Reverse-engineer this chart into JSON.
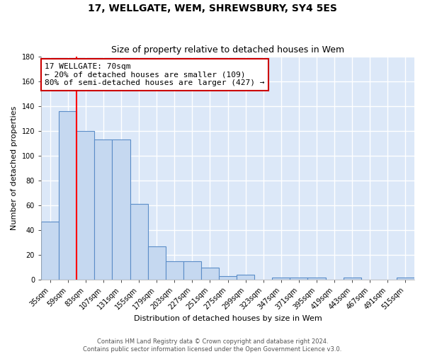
{
  "title": "17, WELLGATE, WEM, SHREWSBURY, SY4 5ES",
  "subtitle": "Size of property relative to detached houses in Wem",
  "xlabel": "Distribution of detached houses by size in Wem",
  "ylabel": "Number of detached properties",
  "footer_line1": "Contains HM Land Registry data © Crown copyright and database right 2024.",
  "footer_line2": "Contains public sector information licensed under the Open Government Licence v3.0.",
  "categories": [
    "35sqm",
    "59sqm",
    "83sqm",
    "107sqm",
    "131sqm",
    "155sqm",
    "179sqm",
    "203sqm",
    "227sqm",
    "251sqm",
    "275sqm",
    "299sqm",
    "323sqm",
    "347sqm",
    "371sqm",
    "395sqm",
    "419sqm",
    "443sqm",
    "467sqm",
    "491sqm",
    "515sqm"
  ],
  "values": [
    47,
    136,
    120,
    113,
    113,
    61,
    27,
    15,
    15,
    10,
    3,
    4,
    0,
    2,
    2,
    2,
    0,
    2,
    0,
    0,
    2
  ],
  "bar_color": "#c5d8f0",
  "bar_edge_color": "#5b8dc8",
  "background_color": "#dce8f8",
  "grid_color": "#ffffff",
  "red_line_x": 1.5,
  "annotation_text": "17 WELLGATE: 70sqm\n← 20% of detached houses are smaller (109)\n80% of semi-detached houses are larger (427) →",
  "annotation_box_color": "#ffffff",
  "annotation_box_edge": "#cc0000",
  "ylim": [
    0,
    180
  ],
  "yticks": [
    0,
    20,
    40,
    60,
    80,
    100,
    120,
    140,
    160,
    180
  ],
  "title_fontsize": 10,
  "subtitle_fontsize": 9,
  "ylabel_fontsize": 8,
  "xlabel_fontsize": 8,
  "tick_fontsize": 7,
  "footer_fontsize": 6,
  "annotation_fontsize": 8
}
